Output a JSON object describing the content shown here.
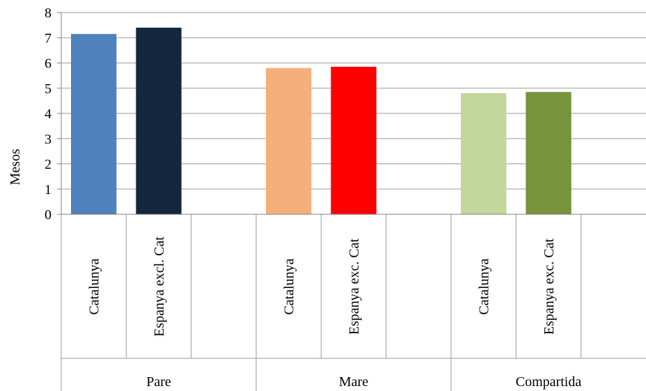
{
  "chart_data": {
    "type": "bar",
    "ylabel": "Mesos",
    "ylim": [
      0,
      8
    ],
    "yticks": [
      0,
      1,
      2,
      3,
      4,
      5,
      6,
      7,
      8
    ],
    "grid": true,
    "groups": [
      {
        "label": "Pare",
        "bars": [
          {
            "category": "Catalunya",
            "value": 7.15,
            "color": "#4F81BD"
          },
          {
            "category": "Espanya excl. Cat",
            "value": 7.4,
            "color": "#14273F"
          }
        ]
      },
      {
        "label": "Mare",
        "bars": [
          {
            "category": "Catalunya",
            "value": 5.8,
            "color": "#F5AF7B"
          },
          {
            "category": "Espanya exc. Cat",
            "value": 5.85,
            "color": "#FF0000"
          }
        ]
      },
      {
        "label": "Compartida",
        "bars": [
          {
            "category": "Catalunya",
            "value": 4.8,
            "color": "#C3D69B"
          },
          {
            "category": "Espanya exc. Cat",
            "value": 4.85,
            "color": "#77933C"
          }
        ]
      }
    ]
  }
}
